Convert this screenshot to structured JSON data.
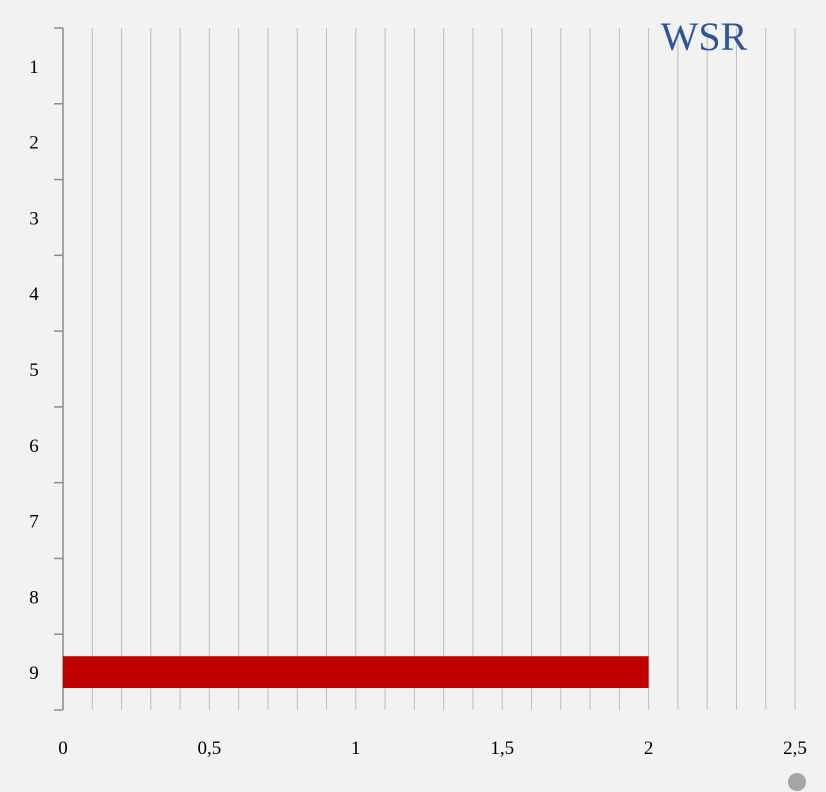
{
  "logo": {
    "text": "WSR"
  },
  "colors": {
    "bar": "#c00000",
    "grid": "#bfbfbf",
    "axis": "#8c8c8c",
    "logo": "#2e5597",
    "background": "#f2f2f2",
    "dot": "#a6a6a6"
  },
  "chart_data": {
    "type": "bar",
    "orientation": "horizontal",
    "title": "",
    "xlabel": "",
    "ylabel": "",
    "categories": [
      "1",
      "2",
      "3",
      "4",
      "5",
      "6",
      "7",
      "8",
      "9"
    ],
    "values": [
      0,
      0,
      0,
      0,
      0,
      0,
      0,
      0,
      2
    ],
    "xlim": [
      0,
      2.5
    ],
    "x_ticks": [
      "0",
      "0,5",
      "1",
      "1,5",
      "2",
      "2,5"
    ],
    "grid": true,
    "legend": "none"
  }
}
